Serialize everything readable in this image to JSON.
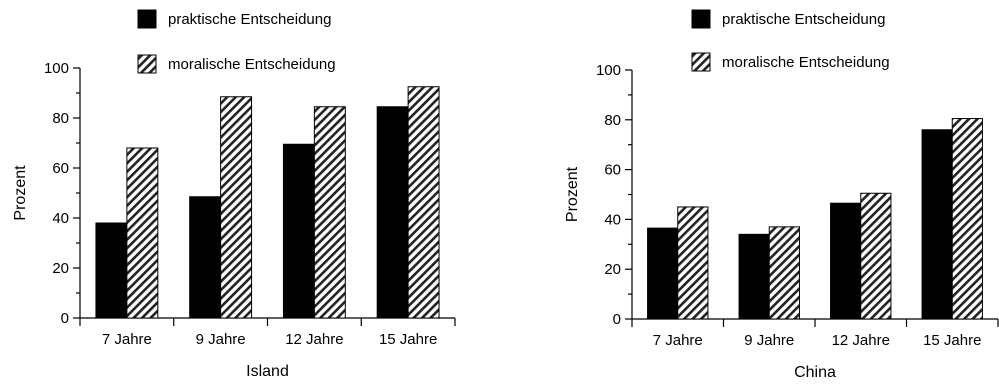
{
  "chart_data": [
    {
      "type": "bar",
      "categories": [
        "7 Jahre",
        "9 Jahre",
        "12 Jahre",
        "15 Jahre"
      ],
      "series": [
        {
          "name": "praktische Entscheidung",
          "values": [
            38,
            48.5,
            69.5,
            84.5
          ]
        },
        {
          "name": "moralische Entscheidung",
          "values": [
            68,
            88.5,
            84.5,
            92.5
          ]
        }
      ],
      "xlabel": "Island",
      "ylabel": "Prozent",
      "ylim": [
        0,
        100
      ],
      "yticks": [
        0,
        20,
        40,
        60,
        80,
        100
      ],
      "grid": false,
      "legend_position": "top"
    },
    {
      "type": "bar",
      "categories": [
        "7 Jahre",
        "9 Jahre",
        "12 Jahre",
        "15 Jahre"
      ],
      "series": [
        {
          "name": "praktische Entscheidung",
          "values": [
            36.5,
            34,
            46.5,
            76
          ]
        },
        {
          "name": "moralische Entscheidung",
          "values": [
            45,
            37,
            50.5,
            80.5
          ]
        }
      ],
      "xlabel": "China",
      "ylabel": "Prozent",
      "ylim": [
        0,
        100
      ],
      "yticks": [
        0,
        20,
        40,
        60,
        80,
        100
      ],
      "grid": false,
      "legend_position": "top"
    }
  ],
  "colors": {
    "praktische": "#000000",
    "moralische_stripe": "#000000",
    "moralische_bg": "#ffffff"
  }
}
